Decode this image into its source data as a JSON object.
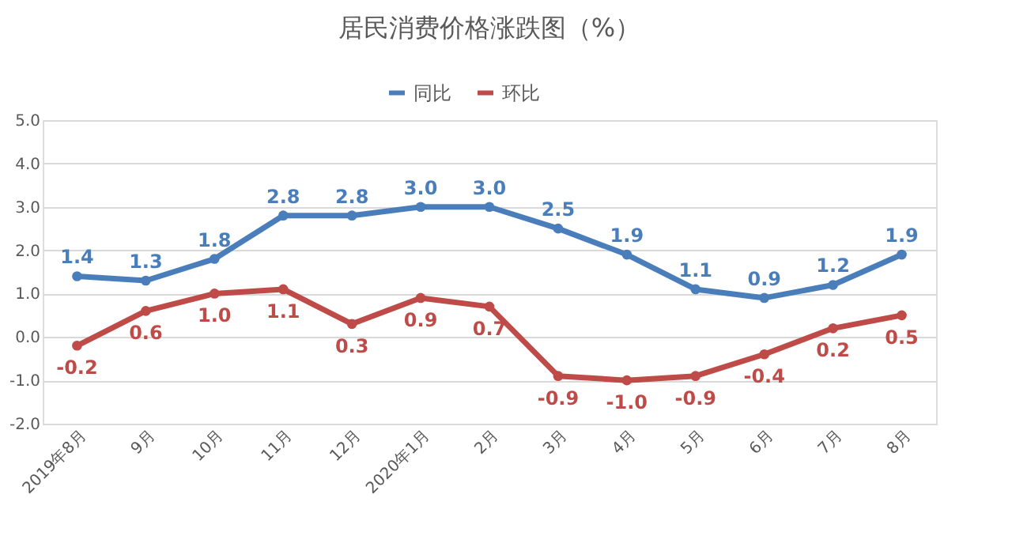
{
  "chart_data": {
    "type": "line",
    "title": "居民消费价格涨跌图（%）",
    "categories": [
      "2019年8月",
      "9月",
      "10月",
      "11月",
      "12月",
      "2020年1月",
      "2月",
      "3月",
      "4月",
      "5月",
      "6月",
      "7月",
      "8月"
    ],
    "series": [
      {
        "name": "同比",
        "color": "#4a7ebb",
        "values": [
          1.4,
          1.3,
          1.8,
          2.8,
          2.8,
          3.0,
          3.0,
          2.5,
          1.9,
          1.1,
          0.9,
          1.2,
          1.9
        ],
        "value_labels": [
          "1.4",
          "1.3",
          "1.8",
          "2.8",
          "2.8",
          "3.0",
          "3.0",
          "2.5",
          "1.9",
          "1.1",
          "0.9",
          "1.2",
          "1.9"
        ]
      },
      {
        "name": "环比",
        "color": "#be4b48",
        "values": [
          -0.2,
          0.6,
          1.0,
          1.1,
          0.3,
          0.9,
          0.7,
          -0.9,
          -1.0,
          -0.9,
          -0.4,
          0.2,
          0.5
        ],
        "value_labels": [
          "-0.2",
          "0.6",
          "1.0",
          "1.1",
          "0.3",
          "0.9",
          "0.7",
          "-0.9",
          "-1.0",
          "-0.9",
          "-0.4",
          "0.2",
          "0.5"
        ]
      }
    ],
    "ylim": [
      -2,
      5
    ],
    "yticks": [
      {
        "value": -2,
        "label": "-2.0"
      },
      {
        "value": -1,
        "label": "-1.0"
      },
      {
        "value": 0,
        "label": "0.0"
      },
      {
        "value": 1,
        "label": "1.0"
      },
      {
        "value": 2,
        "label": "2.0"
      },
      {
        "value": 3,
        "label": "3.0"
      },
      {
        "value": 4,
        "label": "4.0"
      },
      {
        "value": 5,
        "label": "5.0"
      }
    ],
    "grid": "y",
    "legend": "top",
    "marker": "circle",
    "line_style": "solid"
  }
}
